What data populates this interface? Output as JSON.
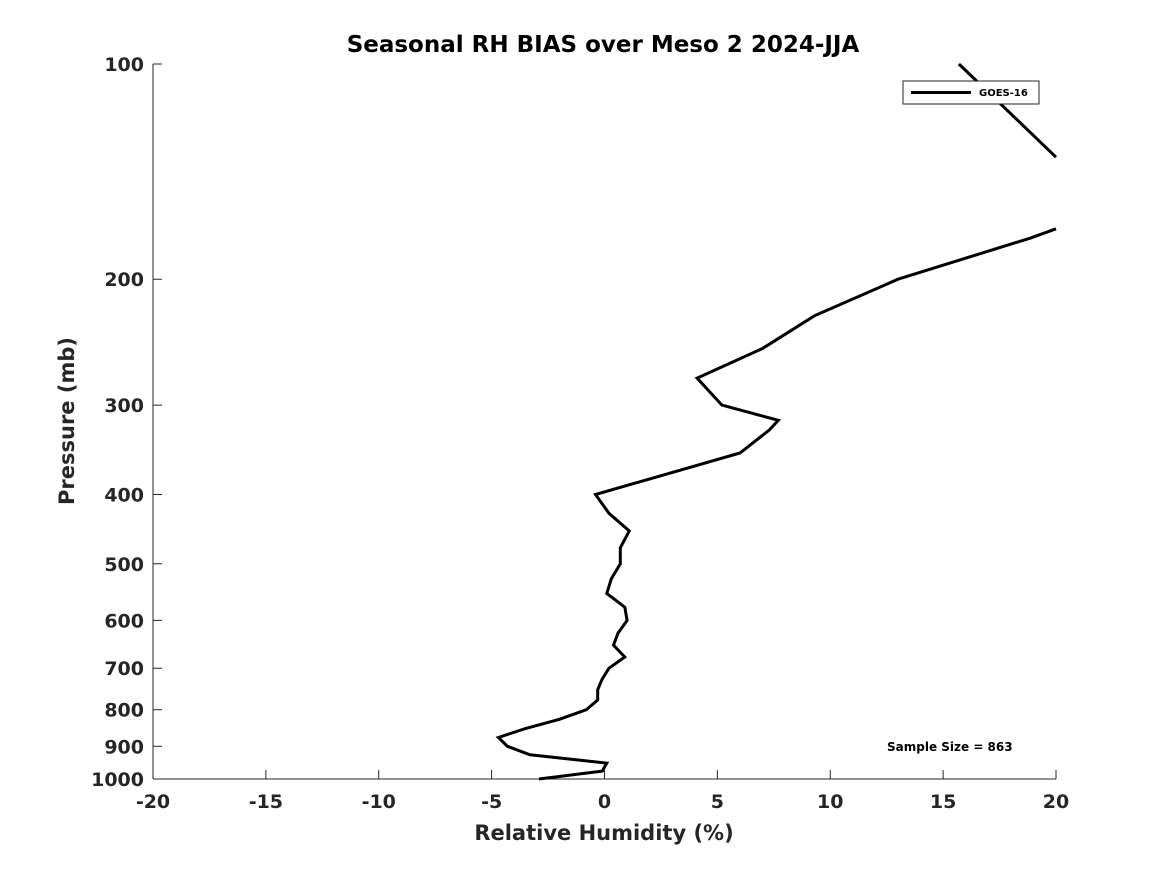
{
  "chart_data": {
    "type": "line",
    "title": "Seasonal RH BIAS over Meso 2  2024-JJA",
    "xlabel": "Relative Humidity (%)",
    "ylabel": "Pressure (mb)",
    "xlim": [
      -20,
      20
    ],
    "ylim": [
      100,
      1000
    ],
    "y_scale": "log",
    "y_reversed": true,
    "x_ticks": [
      -20,
      -15,
      -10,
      -5,
      0,
      5,
      10,
      15,
      20
    ],
    "x_tick_labels": [
      "-20",
      "-15",
      "-10",
      "-5",
      "0",
      "5",
      "10",
      "15",
      "20"
    ],
    "y_ticks": [
      100,
      200,
      300,
      400,
      500,
      600,
      700,
      800,
      900,
      1000
    ],
    "y_tick_labels": [
      "100",
      "200",
      "300",
      "400",
      "500",
      "600",
      "700",
      "800",
      "900",
      "1000"
    ],
    "grid": false,
    "legend_position": "top-right",
    "annotation": "Sample Size = 863",
    "series": [
      {
        "name": "GOES-16",
        "color": "#000000",
        "points": [
          {
            "x": -2.9,
            "y": 1000
          },
          {
            "x": -0.1,
            "y": 975
          },
          {
            "x": 0.1,
            "y": 950
          },
          {
            "x": -3.3,
            "y": 925
          },
          {
            "x": -4.3,
            "y": 900
          },
          {
            "x": -4.7,
            "y": 875
          },
          {
            "x": -3.5,
            "y": 850
          },
          {
            "x": -2.0,
            "y": 825
          },
          {
            "x": -0.8,
            "y": 800
          },
          {
            "x": -0.3,
            "y": 775
          },
          {
            "x": -0.3,
            "y": 750
          },
          {
            "x": -0.1,
            "y": 725
          },
          {
            "x": 0.2,
            "y": 700
          },
          {
            "x": 0.9,
            "y": 675
          },
          {
            "x": 0.4,
            "y": 650
          },
          {
            "x": 0.6,
            "y": 625
          },
          {
            "x": 1.0,
            "y": 600
          },
          {
            "x": 0.9,
            "y": 575
          },
          {
            "x": 0.1,
            "y": 550
          },
          {
            "x": 0.3,
            "y": 525
          },
          {
            "x": 0.7,
            "y": 500
          },
          {
            "x": 0.7,
            "y": 475
          },
          {
            "x": 1.1,
            "y": 450
          },
          {
            "x": 0.2,
            "y": 425
          },
          {
            "x": -0.4,
            "y": 400
          },
          {
            "x": 6.0,
            "y": 350
          },
          {
            "x": 7.3,
            "y": 325
          },
          {
            "x": 7.7,
            "y": 315
          },
          {
            "x": 5.2,
            "y": 300
          },
          {
            "x": 4.1,
            "y": 275
          },
          {
            "x": 7.0,
            "y": 250
          },
          {
            "x": 9.3,
            "y": 225
          },
          {
            "x": 13.0,
            "y": 200
          },
          {
            "x": 18.9,
            "y": 175
          },
          {
            "x": 20.0,
            "y": 170
          }
        ]
      },
      {
        "name": "",
        "color": "#000000",
        "points": [
          {
            "x": 15.7,
            "y": 100
          },
          {
            "x": 18.9,
            "y": 125
          },
          {
            "x": 20.0,
            "y": 135
          }
        ]
      }
    ]
  }
}
